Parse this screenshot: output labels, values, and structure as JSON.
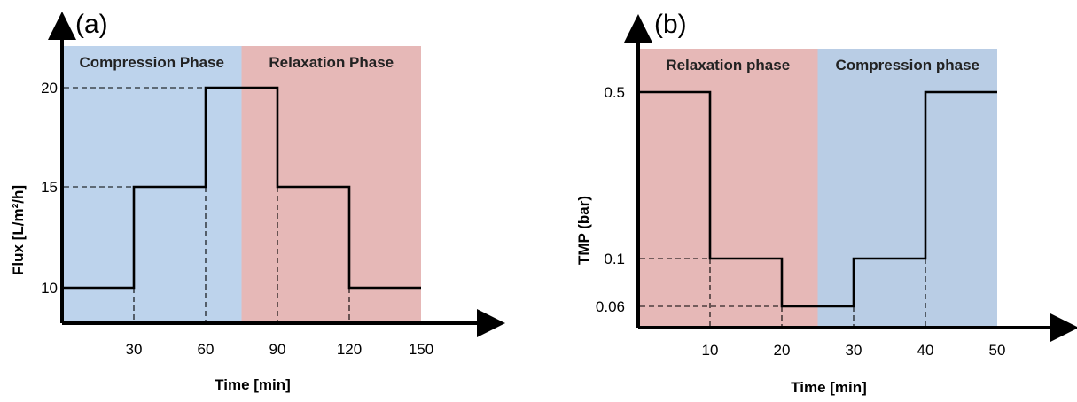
{
  "chart_data": [
    {
      "type": "line",
      "step": true,
      "panel_label": "(a)",
      "xlabel": "Time [min]",
      "ylabel": "Flux [L/m²/h]",
      "x_ticks": [
        30,
        60,
        90,
        120,
        150
      ],
      "y_ticks": [
        10,
        15,
        20
      ],
      "xlim": [
        0,
        150
      ],
      "ylim": [
        10,
        20
      ],
      "phases": [
        {
          "label": "Compression Phase",
          "x_start": 0,
          "x_end": 75,
          "color": "#bdd3ec"
        },
        {
          "label": "Relaxation Phase",
          "x_start": 75,
          "x_end": 150,
          "color": "#e6b8b7"
        }
      ],
      "series": [
        {
          "x": [
            0,
            30,
            30,
            60,
            60,
            90,
            90,
            120,
            120,
            150
          ],
          "y": [
            10,
            10,
            15,
            15,
            20,
            20,
            15,
            15,
            10,
            10
          ]
        }
      ]
    },
    {
      "type": "line",
      "step": true,
      "panel_label": "(b)",
      "xlabel": "Time [min]",
      "ylabel": "TMP (bar)",
      "x_ticks": [
        10,
        20,
        30,
        40,
        50
      ],
      "y_ticks": [
        0.5,
        0.1,
        0.06
      ],
      "y_tick_labels": [
        "0.5",
        "0.1",
        "0.06"
      ],
      "xlim": [
        0,
        50
      ],
      "phases": [
        {
          "label": "Relaxation phase",
          "x_start": 0,
          "x_end": 25,
          "color": "#e6b8b7"
        },
        {
          "label": "Compression phase",
          "x_start": 25,
          "x_end": 50,
          "color": "#b9cde5"
        }
      ],
      "series": [
        {
          "x": [
            0,
            10,
            10,
            20,
            20,
            30,
            30,
            40,
            40,
            50
          ],
          "y": [
            0.5,
            0.5,
            0.1,
            0.1,
            0.06,
            0.06,
            0.1,
            0.1,
            0.5,
            0.5
          ]
        }
      ]
    }
  ]
}
